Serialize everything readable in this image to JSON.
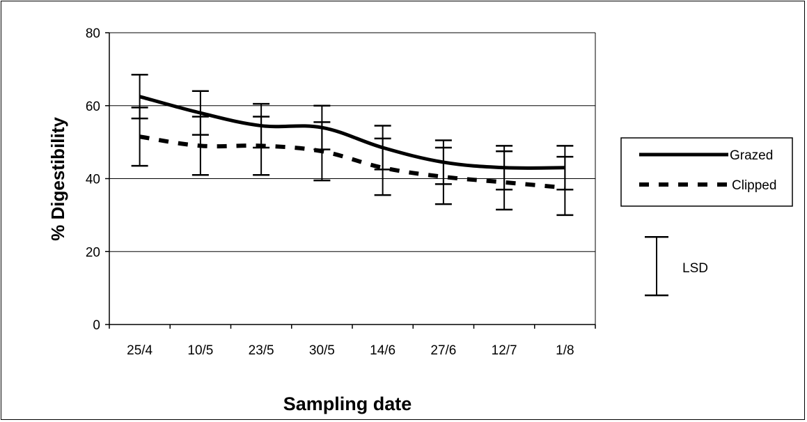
{
  "chart_data": {
    "type": "line",
    "title": "",
    "xlabel": "Sampling date",
    "ylabel": "% Digestibility",
    "categories": [
      "25/4",
      "10/5",
      "23/5",
      "30/5",
      "14/6",
      "27/6",
      "12/7",
      "1/8"
    ],
    "ylim": [
      0,
      80
    ],
    "yticks": [
      0,
      20,
      40,
      60,
      80
    ],
    "grid": "horizontal",
    "series": [
      {
        "name": "Grazed",
        "style": "solid",
        "color": "#000000",
        "values": [
          62.5,
          58,
          54.5,
          54,
          48.5,
          44.5,
          43,
          43
        ],
        "error_low": [
          56.5,
          52,
          48.5,
          48,
          42.5,
          38.5,
          37,
          37
        ],
        "error_high": [
          68.5,
          64,
          60.5,
          60,
          54.5,
          50.5,
          49,
          49
        ]
      },
      {
        "name": "Clipped",
        "style": "dashed",
        "color": "#000000",
        "values": [
          51.5,
          49,
          49,
          47.5,
          43,
          40.5,
          39,
          37.5
        ],
        "error_low": [
          43.5,
          41,
          41,
          39.5,
          35.5,
          33,
          31.5,
          30
        ],
        "error_high": [
          59.5,
          57,
          57,
          55.5,
          51,
          48.5,
          47.5,
          46
        ]
      }
    ],
    "legend": {
      "placement": "right",
      "entries": [
        "Grazed",
        "Clipped"
      ]
    },
    "lsd": {
      "label": "LSD",
      "low": 8,
      "high": 24
    }
  }
}
